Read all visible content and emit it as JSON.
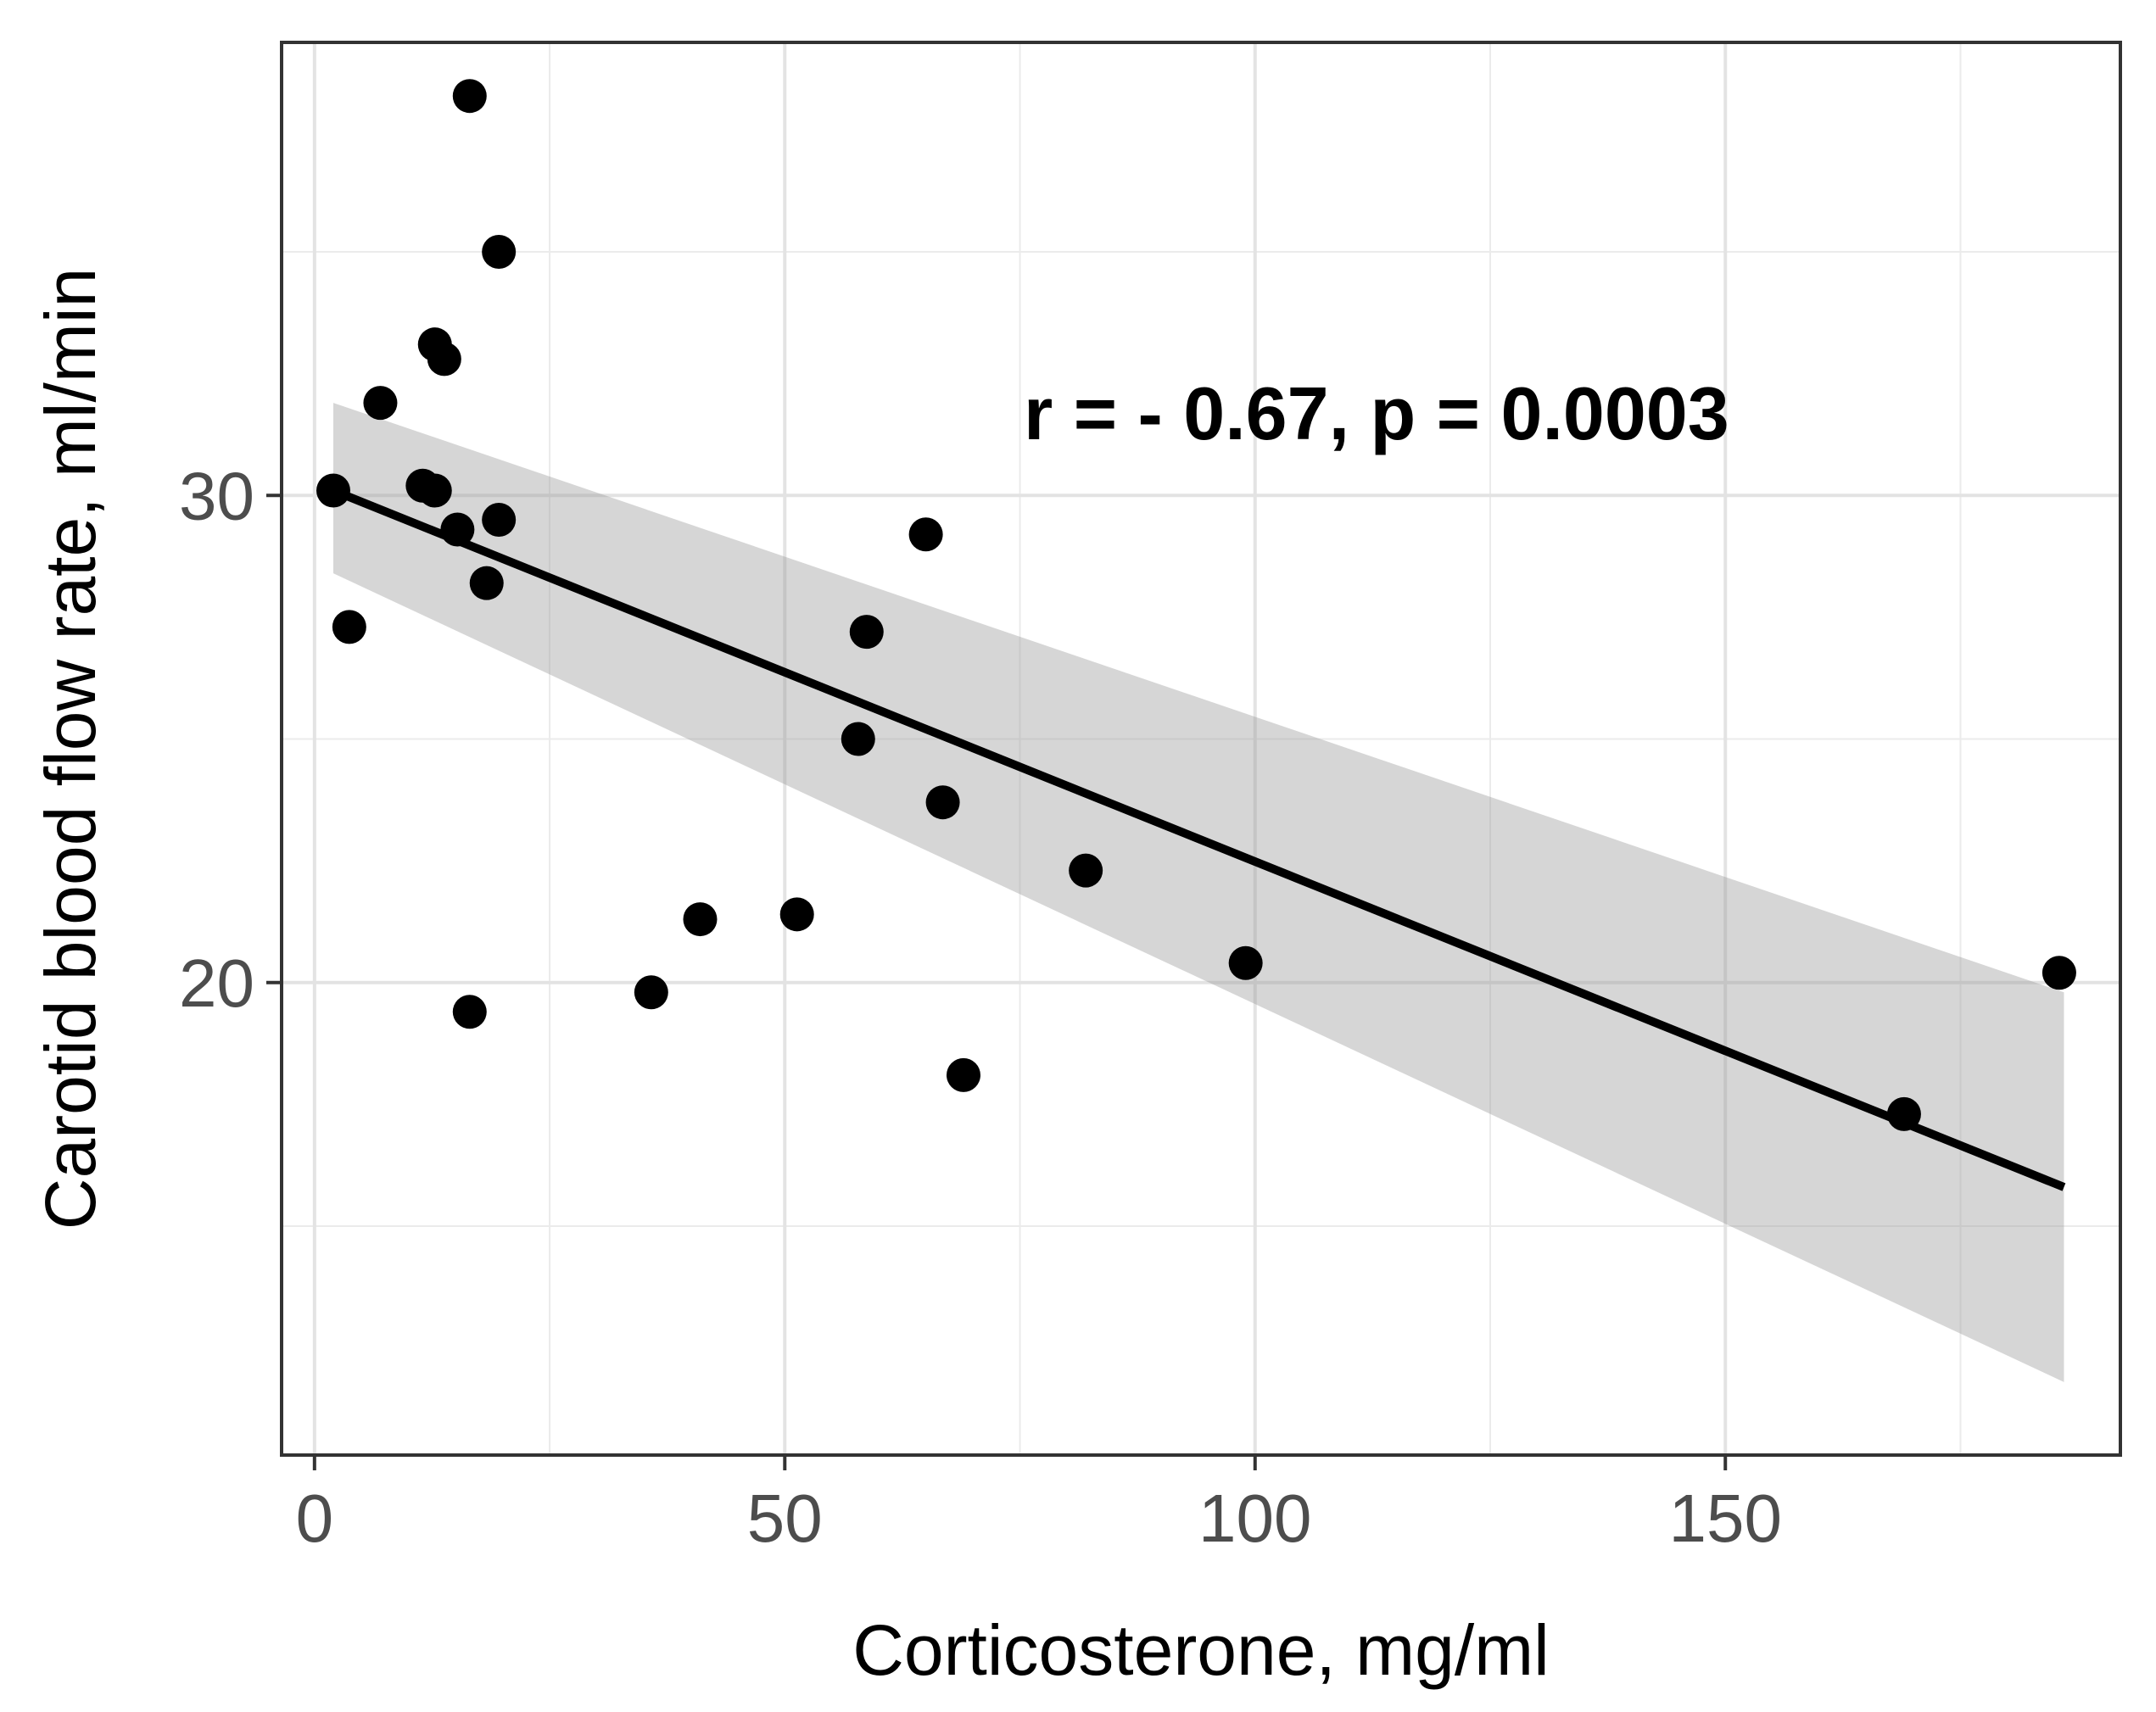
{
  "chart_data": {
    "type": "scatter",
    "title": "",
    "xlabel": "Corticosterone, mg/ml",
    "ylabel": "Carotid blood flow rate,  ml/min",
    "xlim": [
      -3.5,
      192
    ],
    "ylim": [
      10.3,
      39.3
    ],
    "x_major_ticks": [
      0,
      50,
      100,
      150
    ],
    "x_tick_labels": [
      "0",
      "50",
      "100",
      "150"
    ],
    "x_minor_ticks": [
      25,
      75,
      125,
      175
    ],
    "y_major_ticks": [
      20,
      30
    ],
    "y_tick_labels": [
      "20",
      "30"
    ],
    "y_minor_ticks": [
      15,
      25,
      35
    ],
    "grid": true,
    "annotation": "r = - 0.67, p = 0.0003",
    "point_color": "#000000",
    "line_color": "#000000",
    "band_color": "#999999",
    "points": [
      {
        "x": 2.0,
        "y": 30.1
      },
      {
        "x": 3.7,
        "y": 27.3
      },
      {
        "x": 7.0,
        "y": 31.9
      },
      {
        "x": 11.5,
        "y": 30.2
      },
      {
        "x": 12.8,
        "y": 30.1
      },
      {
        "x": 12.8,
        "y": 33.1
      },
      {
        "x": 13.8,
        "y": 32.8
      },
      {
        "x": 15.2,
        "y": 29.3
      },
      {
        "x": 16.5,
        "y": 38.2
      },
      {
        "x": 16.5,
        "y": 19.4
      },
      {
        "x": 18.3,
        "y": 28.2
      },
      {
        "x": 19.6,
        "y": 35.0
      },
      {
        "x": 19.6,
        "y": 29.5
      },
      {
        "x": 35.8,
        "y": 19.8
      },
      {
        "x": 41.0,
        "y": 21.3
      },
      {
        "x": 51.3,
        "y": 21.4
      },
      {
        "x": 57.8,
        "y": 25.0
      },
      {
        "x": 58.7,
        "y": 27.2
      },
      {
        "x": 65.0,
        "y": 29.2
      },
      {
        "x": 66.8,
        "y": 23.7
      },
      {
        "x": 69.0,
        "y": 18.1
      },
      {
        "x": 82.0,
        "y": 22.3
      },
      {
        "x": 99.0,
        "y": 20.4
      },
      {
        "x": 169.0,
        "y": 17.3
      },
      {
        "x": 185.5,
        "y": 20.2
      }
    ],
    "regression": {
      "x": [
        2,
        186
      ],
      "y": [
        30.1,
        15.8
      ]
    },
    "confidence_band": {
      "x": [
        2,
        186
      ],
      "upper": [
        31.9,
        19.8
      ],
      "lower": [
        28.4,
        11.8
      ]
    }
  }
}
